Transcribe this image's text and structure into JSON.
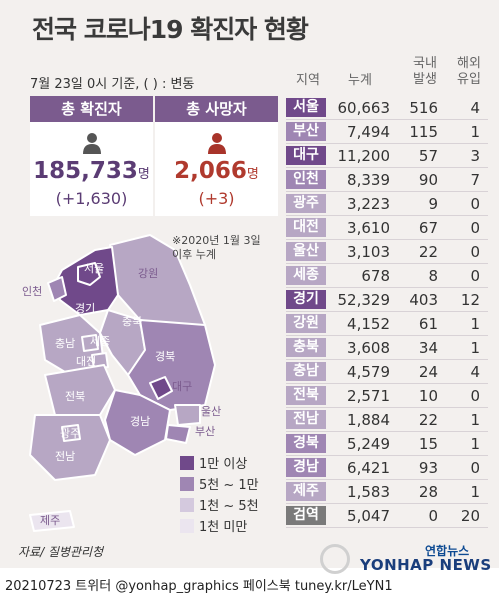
{
  "title": "전국 코로나19 확진자 현황",
  "note": "7월 23일 0시 기준, ( ) : 변동",
  "headers": {
    "region": "지역",
    "total": "누계",
    "domestic_line1": "국내",
    "domestic_line2": "발생",
    "foreign_line1": "해외",
    "foreign_line2": "유입"
  },
  "cards": {
    "confirmed": {
      "label": "총 확진자",
      "value": "185,733",
      "unit": "명",
      "delta": "(+1,630)",
      "icon": "person-icon",
      "color": "#7b5b8e"
    },
    "deaths": {
      "label": "총 사망자",
      "value": "2,066",
      "unit": "명",
      "delta": "(+3)",
      "icon": "person-icon",
      "color": "#b03a2e"
    }
  },
  "map_note": {
    "line1": "※2020년 1월 3일",
    "line2": "이후 누계"
  },
  "legend": [
    {
      "label": "1만 이상",
      "color": "#70498a"
    },
    {
      "label": "5천 ~ 1만",
      "color": "#9f86b3"
    },
    {
      "label": "1천 ~ 5천",
      "color": "#d4c9de"
    },
    {
      "label": "1천 미만",
      "color": "#ebe5ef"
    }
  ],
  "map_labels": {
    "seoul": "서울",
    "incheon": "인천",
    "gyeonggi": "경기",
    "gangwon": "강원",
    "chungbuk": "충북",
    "chungnam": "충남",
    "sejong": "세종",
    "daejeon": "대전",
    "gyeongbuk": "경북",
    "daegu": "대구",
    "jeonbuk": "전북",
    "gyeongnam": "경남",
    "ulsan": "울산",
    "busan": "부산",
    "gwangju": "광주",
    "jeonnam": "전남",
    "jeju": "제주"
  },
  "chart_data": {
    "type": "table",
    "title": "전국 코로나19 확진자 현황",
    "columns": [
      "지역",
      "누계",
      "국내 발생",
      "해외 유입"
    ],
    "rows": [
      {
        "region": "서울",
        "total": "60,663",
        "domestic": "516",
        "foreign": "4",
        "color": "#70498a"
      },
      {
        "region": "부산",
        "total": "7,494",
        "domestic": "115",
        "foreign": "1",
        "color": "#9f86b3"
      },
      {
        "region": "대구",
        "total": "11,200",
        "domestic": "57",
        "foreign": "3",
        "color": "#70498a"
      },
      {
        "region": "인천",
        "total": "8,339",
        "domestic": "90",
        "foreign": "7",
        "color": "#9f86b3"
      },
      {
        "region": "광주",
        "total": "3,223",
        "domestic": "9",
        "foreign": "0",
        "color": "#b7a7c4"
      },
      {
        "region": "대전",
        "total": "3,610",
        "domestic": "67",
        "foreign": "0",
        "color": "#b7a7c4"
      },
      {
        "region": "울산",
        "total": "3,103",
        "domestic": "22",
        "foreign": "0",
        "color": "#b7a7c4"
      },
      {
        "region": "세종",
        "total": "678",
        "domestic": "8",
        "foreign": "0",
        "color": "#b7a7c4"
      },
      {
        "region": "경기",
        "total": "52,329",
        "domestic": "403",
        "foreign": "12",
        "color": "#70498a"
      },
      {
        "region": "강원",
        "total": "4,152",
        "domestic": "61",
        "foreign": "1",
        "color": "#b7a7c4"
      },
      {
        "region": "충북",
        "total": "3,608",
        "domestic": "34",
        "foreign": "1",
        "color": "#b7a7c4"
      },
      {
        "region": "충남",
        "total": "4,579",
        "domestic": "24",
        "foreign": "4",
        "color": "#b7a7c4"
      },
      {
        "region": "전북",
        "total": "2,571",
        "domestic": "10",
        "foreign": "0",
        "color": "#b7a7c4"
      },
      {
        "region": "전남",
        "total": "1,884",
        "domestic": "22",
        "foreign": "1",
        "color": "#b7a7c4"
      },
      {
        "region": "경북",
        "total": "5,249",
        "domestic": "15",
        "foreign": "1",
        "color": "#9f86b3"
      },
      {
        "region": "경남",
        "total": "6,421",
        "domestic": "93",
        "foreign": "0",
        "color": "#9f86b3"
      },
      {
        "region": "제주",
        "total": "1,583",
        "domestic": "28",
        "foreign": "1",
        "color": "#b7a7c4"
      },
      {
        "region": "검역",
        "total": "5,047",
        "domestic": "0",
        "foreign": "20",
        "color": "#7a7a7a"
      }
    ]
  },
  "source": "자료/ 질병관리청",
  "footer": "20210723 트위터 @yonhap_graphics  페이스북 tuney.kr/LeYN1",
  "logo": {
    "top": "연합뉴스",
    "main": "YONHAP NEWS"
  }
}
